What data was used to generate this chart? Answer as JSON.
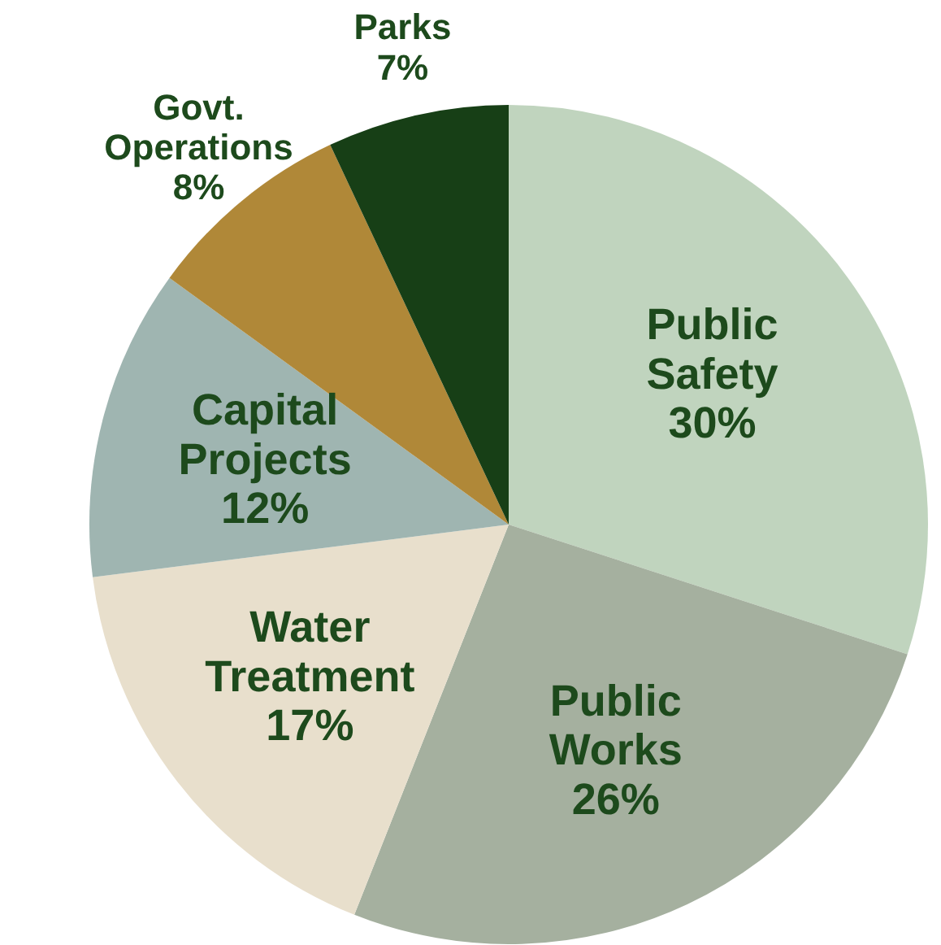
{
  "chart_data": {
    "type": "pie",
    "categories": [
      "Public Safety",
      "Public Works",
      "Water Treatment",
      "Capital Projects",
      "Govt. Operations",
      "Parks"
    ],
    "values": [
      30,
      26,
      17,
      12,
      8,
      7
    ],
    "value_labels": [
      "30%",
      "26%",
      "17%",
      "12%",
      "8%",
      "7%"
    ],
    "colors": [
      "#c0d4be",
      "#a5b09f",
      "#e8dfcc",
      "#9fb5b1",
      "#b08838",
      "#173f16"
    ],
    "legend": false
  }
}
